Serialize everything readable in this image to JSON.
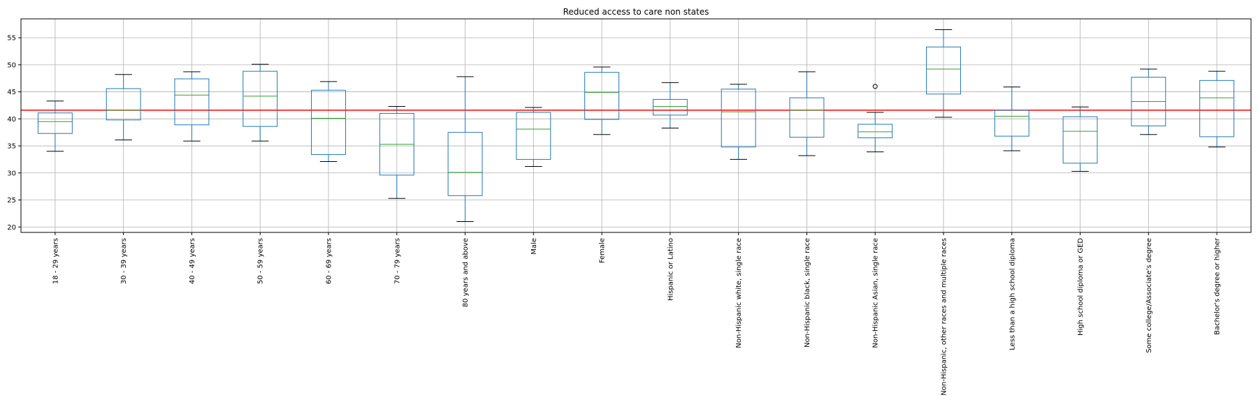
{
  "chart_data": {
    "type": "boxplot",
    "title": "Reduced access to care non states",
    "xlabel": "",
    "ylabel": "",
    "ylim": [
      19,
      58.5
    ],
    "yticks": [
      20,
      25,
      30,
      35,
      40,
      45,
      50,
      55
    ],
    "grid": true,
    "reference_line": {
      "y": 41.6,
      "color": "#ff0000"
    },
    "colors": {
      "box": "#1f77b4",
      "median": "#2ca02c",
      "cap": "#000000"
    },
    "categories": [
      "18 - 29 years",
      "30 - 39 years",
      "40 - 49 years",
      "50 - 59 years",
      "60 - 69 years",
      "70 - 79 years",
      "80 years and above",
      "Male",
      "Female",
      "Hispanic or Latino",
      "Non-Hispanic white, single race",
      "Non-Hispanic black, single race",
      "Non-Hispanic Asian, single race",
      "Non-Hispanic, other races and multiple races",
      "Less than a high school diploma",
      "High school diploma or GED",
      "Some college/Associate's degree",
      "Bachelor's degree or higher"
    ],
    "boxes": [
      {
        "whislo": 34.0,
        "q1": 37.3,
        "med": 39.5,
        "q3": 41.1,
        "whishi": 43.3,
        "fliers": []
      },
      {
        "whislo": 36.1,
        "q1": 39.8,
        "med": 41.6,
        "q3": 45.6,
        "whishi": 48.2,
        "fliers": []
      },
      {
        "whislo": 35.9,
        "q1": 38.9,
        "med": 44.4,
        "q3": 47.4,
        "whishi": 48.7,
        "fliers": []
      },
      {
        "whislo": 35.9,
        "q1": 38.6,
        "med": 44.2,
        "q3": 48.8,
        "whishi": 50.1,
        "fliers": []
      },
      {
        "whislo": 32.1,
        "q1": 33.4,
        "med": 40.1,
        "q3": 45.3,
        "whishi": 46.9,
        "fliers": []
      },
      {
        "whislo": 25.3,
        "q1": 29.6,
        "med": 35.3,
        "q3": 41.0,
        "whishi": 42.3,
        "fliers": []
      },
      {
        "whislo": 21.0,
        "q1": 25.8,
        "med": 30.1,
        "q3": 37.5,
        "whishi": 47.8,
        "fliers": []
      },
      {
        "whislo": 31.2,
        "q1": 32.5,
        "med": 38.1,
        "q3": 41.2,
        "whishi": 42.1,
        "fliers": []
      },
      {
        "whislo": 37.1,
        "q1": 39.9,
        "med": 44.9,
        "q3": 48.6,
        "whishi": 49.6,
        "fliers": []
      },
      {
        "whislo": 38.3,
        "q1": 40.7,
        "med": 42.3,
        "q3": 43.6,
        "whishi": 46.7,
        "fliers": []
      },
      {
        "whislo": 32.5,
        "q1": 34.8,
        "med": 41.3,
        "q3": 45.5,
        "whishi": 46.4,
        "fliers": []
      },
      {
        "whislo": 33.2,
        "q1": 36.6,
        "med": 41.6,
        "q3": 43.9,
        "whishi": 48.7,
        "fliers": []
      },
      {
        "whislo": 33.9,
        "q1": 36.5,
        "med": 37.6,
        "q3": 39.0,
        "whishi": 41.2,
        "fliers": [
          46.0
        ]
      },
      {
        "whislo": 40.3,
        "q1": 44.6,
        "med": 49.2,
        "q3": 53.3,
        "whishi": 56.5,
        "fliers": []
      },
      {
        "whislo": 34.1,
        "q1": 36.8,
        "med": 40.5,
        "q3": 41.6,
        "whishi": 45.9,
        "fliers": []
      },
      {
        "whislo": 30.3,
        "q1": 31.8,
        "med": 37.7,
        "q3": 40.4,
        "whishi": 42.2,
        "fliers": []
      },
      {
        "whislo": 37.1,
        "q1": 38.7,
        "med": 43.2,
        "q3": 47.7,
        "whishi": 49.2,
        "fliers": []
      },
      {
        "whislo": 34.8,
        "q1": 36.7,
        "med": 43.9,
        "q3": 47.1,
        "whishi": 48.8,
        "fliers": []
      }
    ]
  }
}
